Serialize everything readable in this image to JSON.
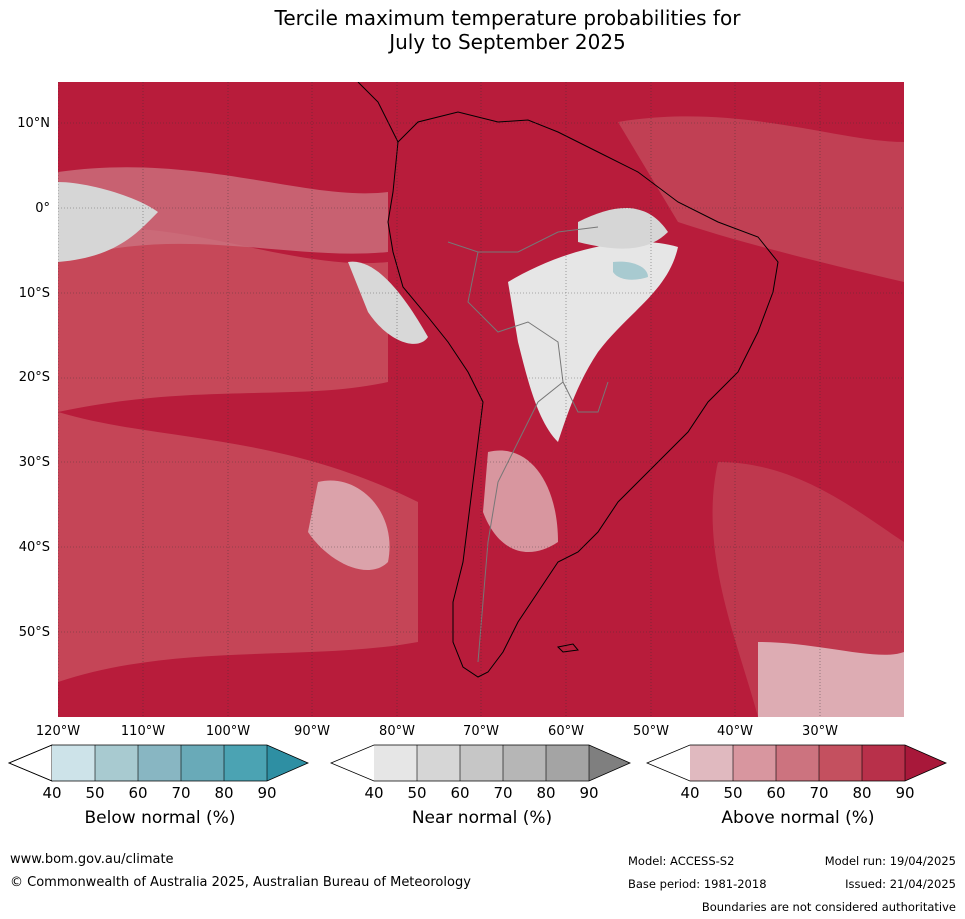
{
  "title_line1": "Tercile maximum temperature probabilities for",
  "title_line2": "July to September 2025",
  "map": {
    "region": "South America",
    "lat_labels": [
      "10°N",
      "0°",
      "10°S",
      "20°S",
      "30°S",
      "40°S",
      "50°S"
    ],
    "lon_labels": [
      "120°W",
      "110°W",
      "100°W",
      "90°W",
      "80°W",
      "70°W",
      "60°W",
      "50°W",
      "40°W",
      "30°W"
    ],
    "colors": {
      "above_dominant": "#b81c3b",
      "ocean_mid": "#c8505f",
      "near_normal_light": "#e0e0e0",
      "below_light": "#a8cad0",
      "border": "#777777",
      "coast": "#000000"
    }
  },
  "legends": [
    {
      "label": "Below normal (%)",
      "ticks": [
        "40",
        "50",
        "60",
        "70",
        "80",
        "90"
      ],
      "colors": [
        "#ffffff",
        "#cde3e9",
        "#a8cad0",
        "#88b6c2",
        "#69aab8",
        "#4ba3b3",
        "#2e8fa3"
      ]
    },
    {
      "label": "Near normal (%)",
      "ticks": [
        "40",
        "50",
        "60",
        "70",
        "80",
        "90"
      ],
      "colors": [
        "#ffffff",
        "#e6e6e6",
        "#d6d6d6",
        "#c6c6c6",
        "#b6b6b6",
        "#a4a4a4",
        "#7f7f7f"
      ]
    },
    {
      "label": "Above normal (%)",
      "ticks": [
        "40",
        "50",
        "60",
        "70",
        "80",
        "90"
      ],
      "colors": [
        "#ffffff",
        "#e0b9bf",
        "#d8969f",
        "#cc737f",
        "#c4505f",
        "#b8304a",
        "#a8183a"
      ]
    }
  ],
  "footer": {
    "url": "www.bom.gov.au/climate",
    "copyright": "© Commonwealth of Australia 2025, Australian Bureau of Meteorology",
    "model": "Model: ACCESS-S2",
    "model_run": "Model run: 19/04/2025",
    "base_period": "Base period: 1981-2018",
    "issued": "Issued: 21/04/2025",
    "disclaimer": "Boundaries are not considered authoritative"
  }
}
